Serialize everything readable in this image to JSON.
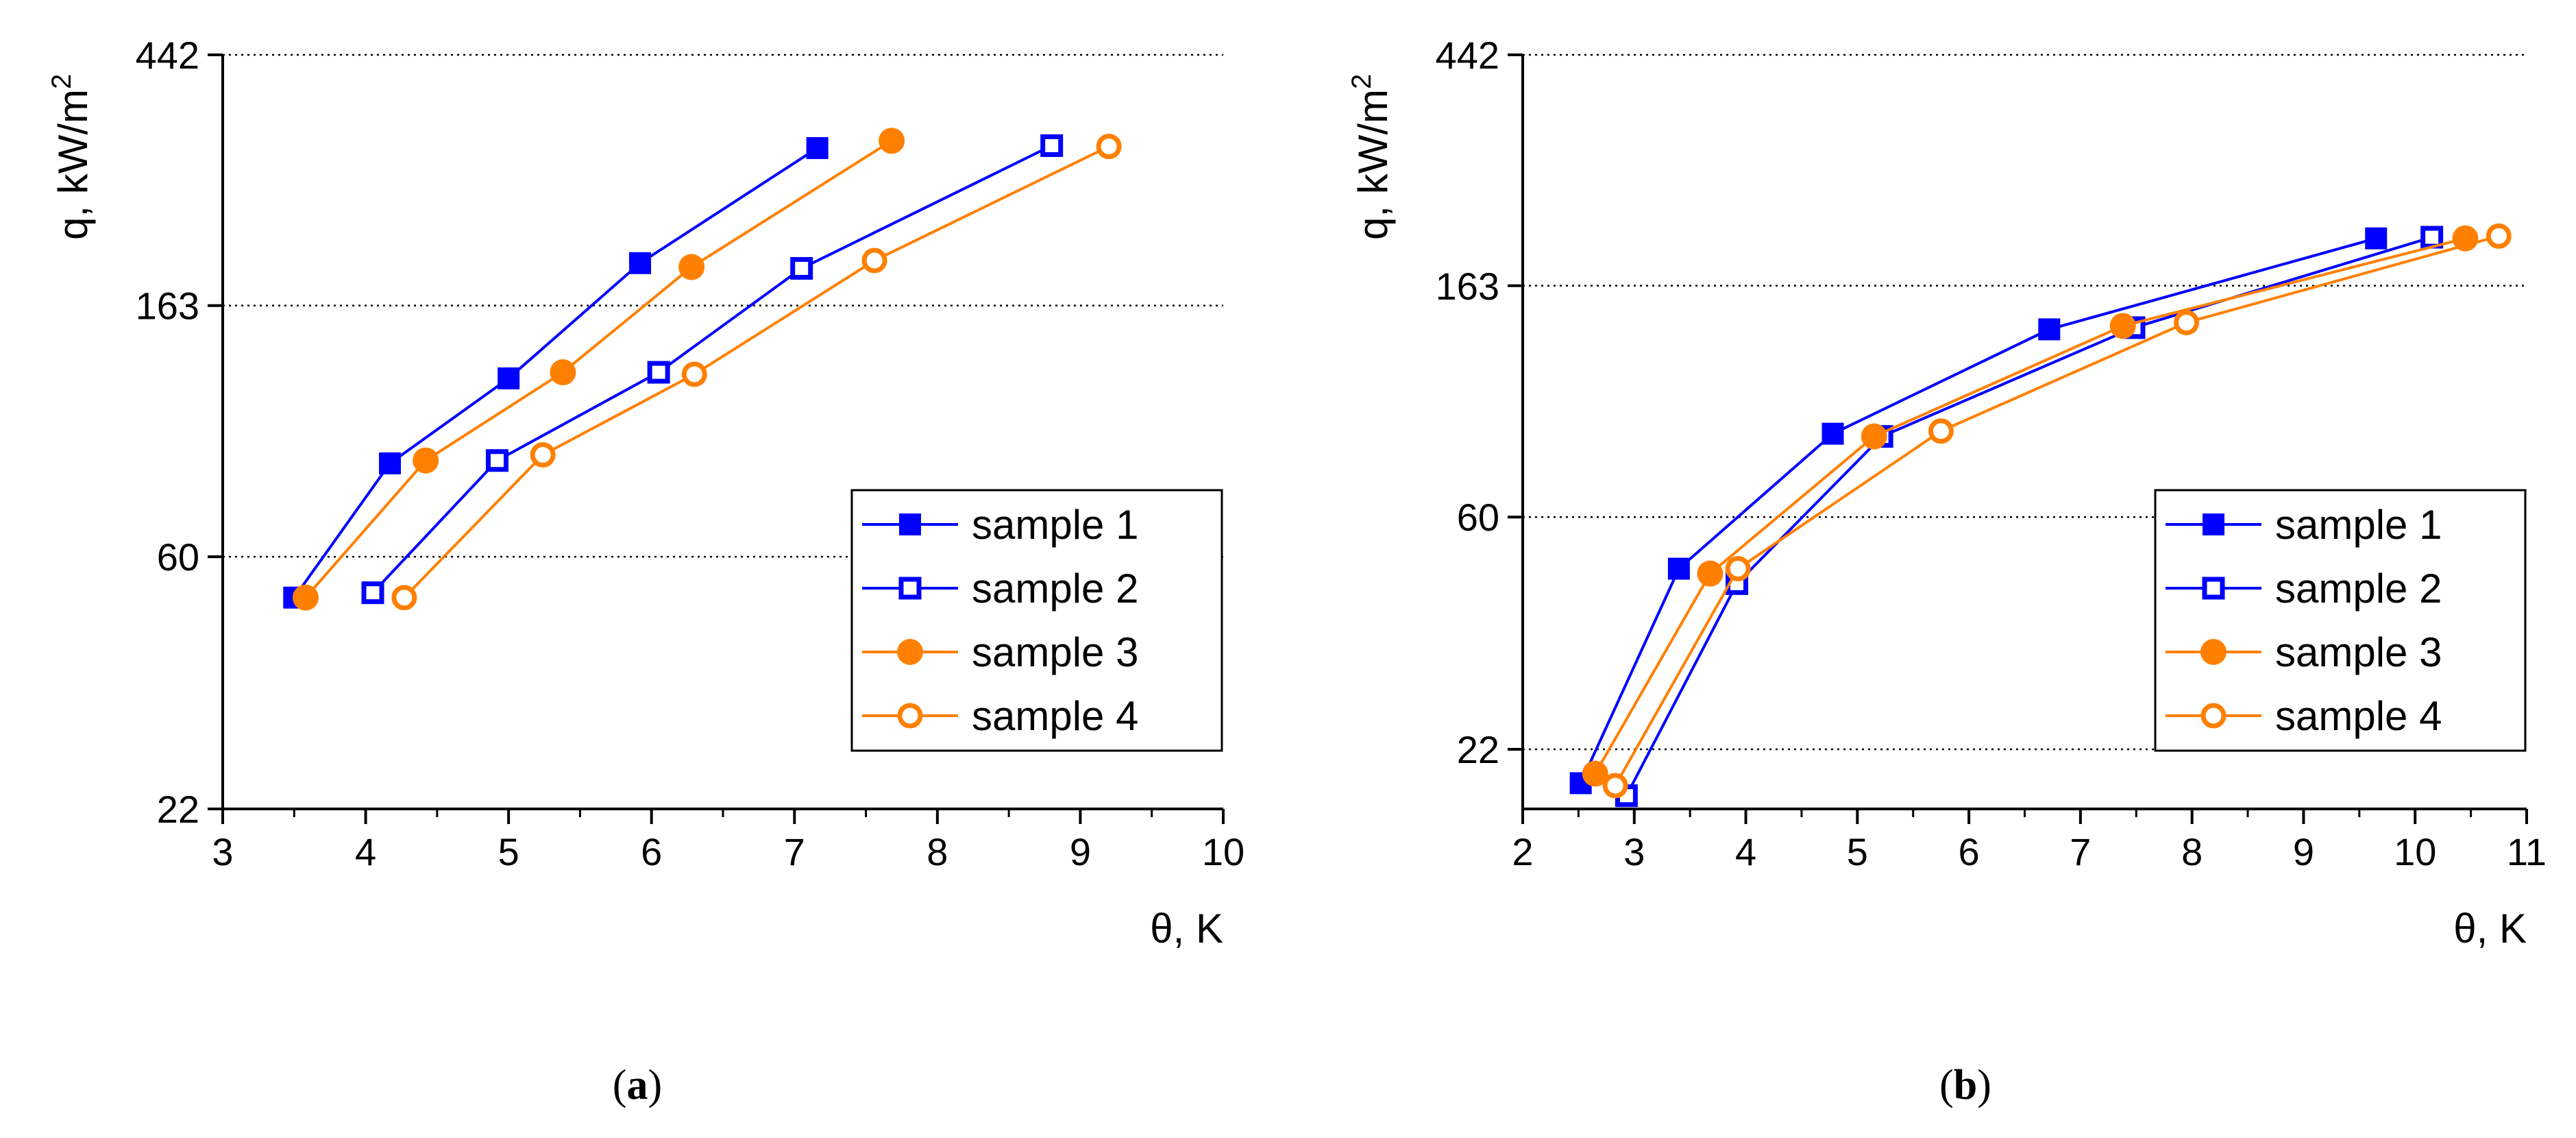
{
  "chart_data": [
    {
      "type": "line",
      "panel": "a",
      "caption_label": "a",
      "xlabel": "θ, K",
      "ylabel": "q, kW/m",
      "ylabel_superscript": "2",
      "x_scale": "linear",
      "y_scale": "log",
      "xlim": [
        3,
        10
      ],
      "ylim": [
        22,
        442
      ],
      "x_ticks": [
        3,
        4,
        5,
        6,
        7,
        8,
        9,
        10
      ],
      "y_ticks": [
        22,
        60,
        163,
        442
      ],
      "y_gridlines": [
        60,
        163,
        442
      ],
      "legend_position": "lower-right",
      "series": [
        {
          "name": "sample 1",
          "color": "#0000ff",
          "marker": "filled-square",
          "x": [
            3.5,
            4.17,
            5.0,
            5.92,
            7.16
          ],
          "y": [
            51,
            87,
            122,
            193,
            305
          ]
        },
        {
          "name": "sample 2",
          "color": "#0000ff",
          "marker": "open-square",
          "x": [
            4.05,
            4.92,
            6.05,
            7.05,
            8.8
          ],
          "y": [
            52,
            88,
            125,
            189,
            308
          ]
        },
        {
          "name": "sample 3",
          "color": "#ff8000",
          "marker": "filled-circle",
          "x": [
            3.58,
            4.42,
            5.38,
            6.28,
            7.68
          ],
          "y": [
            51,
            88,
            125,
            190,
            314
          ]
        },
        {
          "name": "sample 4",
          "color": "#ff8000",
          "marker": "open-circle",
          "x": [
            4.27,
            5.24,
            6.3,
            7.56,
            9.2
          ],
          "y": [
            51,
            90,
            124,
            195,
            307
          ]
        }
      ]
    },
    {
      "type": "line",
      "panel": "b",
      "caption_label": "b",
      "xlabel": "θ, K",
      "ylabel": "q, kW/m",
      "ylabel_superscript": "2",
      "x_scale": "linear",
      "y_scale": "log",
      "xlim": [
        2,
        11
      ],
      "ylim": [
        17,
        442
      ],
      "x_ticks": [
        2,
        3,
        4,
        5,
        6,
        7,
        8,
        9,
        10,
        11
      ],
      "y_ticks": [
        22,
        60,
        163,
        442
      ],
      "y_gridlines": [
        22,
        60,
        163,
        442
      ],
      "legend_position": "lower-right",
      "series": [
        {
          "name": "sample 1",
          "color": "#0000ff",
          "marker": "filled-square",
          "x": [
            2.52,
            3.4,
            4.78,
            6.72,
            9.65
          ],
          "y": [
            19,
            48,
            86,
            135,
            200
          ]
        },
        {
          "name": "sample 2",
          "color": "#0000ff",
          "marker": "open-square",
          "x": [
            2.93,
            3.92,
            5.22,
            7.48,
            10.15
          ],
          "y": [
            18,
            45,
            85,
            136,
            201
          ]
        },
        {
          "name": "sample 3",
          "color": "#ff8000",
          "marker": "filled-circle",
          "x": [
            2.65,
            3.68,
            5.15,
            7.38,
            10.45
          ],
          "y": [
            19.8,
            47,
            85,
            137,
            200
          ]
        },
        {
          "name": "sample 4",
          "color": "#ff8000",
          "marker": "open-circle",
          "x": [
            2.83,
            3.93,
            5.75,
            7.95,
            10.75
          ],
          "y": [
            18.8,
            48,
            87,
            139,
            202
          ]
        }
      ]
    }
  ]
}
